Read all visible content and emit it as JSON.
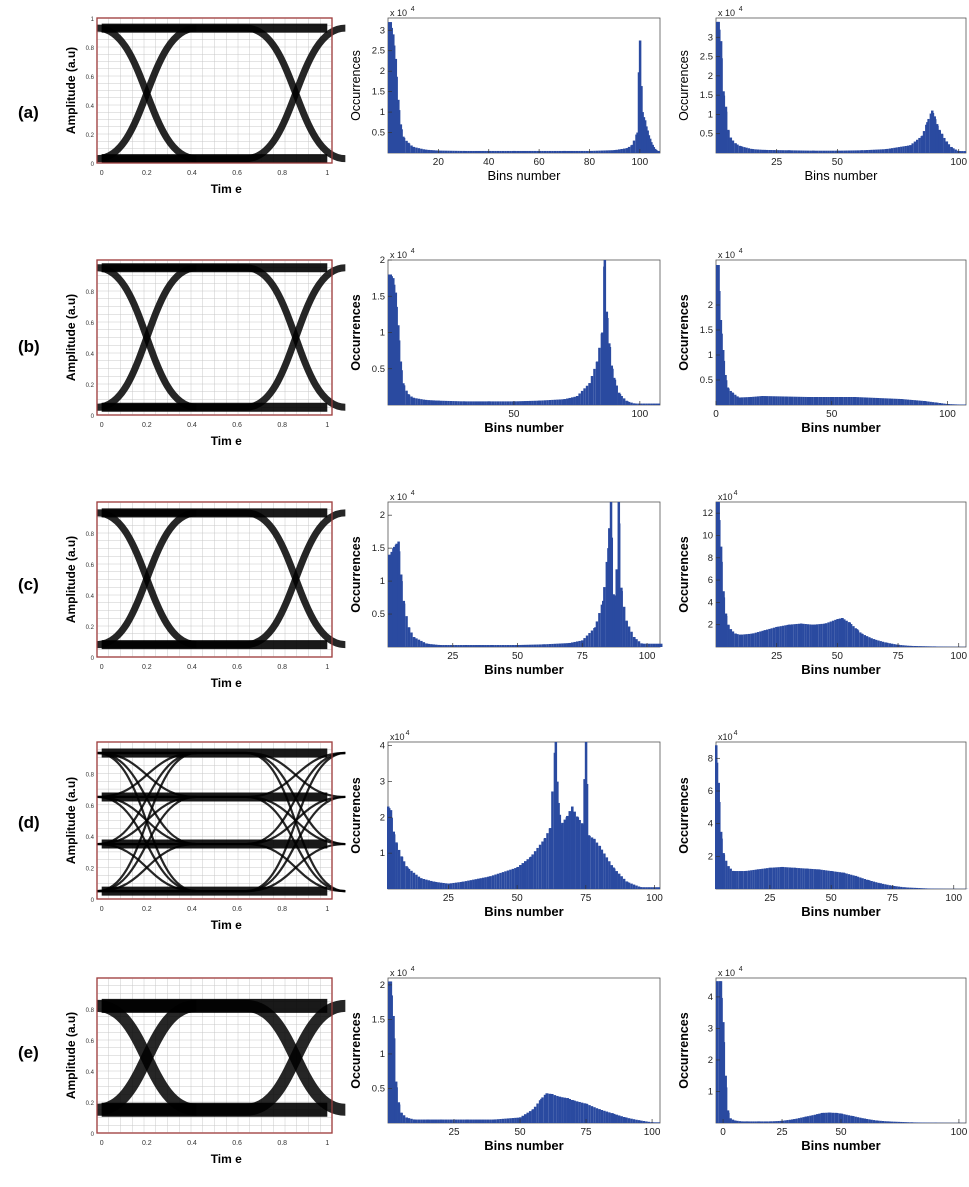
{
  "figure": {
    "rows": [
      {
        "label": "(a)",
        "eye": {
          "ylabel": "Amplitude (a.u)",
          "xlabel": "Tim e",
          "levels": [
            0.03,
            0.93
          ],
          "xticks": [
            "0",
            "0.2",
            "0.4",
            "0.6",
            "0.8",
            "1"
          ],
          "yticks": [
            "0",
            "0.2",
            "0.4",
            "0.6",
            "0.8",
            "1"
          ]
        },
        "hist1": {
          "ylabel": "Occurrences",
          "xlabel": "Bins number",
          "multiplier": "x 10",
          "multiplier_exp": "4",
          "yticks": [
            "0.5",
            "1",
            "1.5",
            "2",
            "2.5",
            "3"
          ],
          "xticks": [
            "20",
            "40",
            "60",
            "80",
            "100"
          ]
        },
        "hist2": {
          "ylabel": "Occurrences",
          "xlabel": "Bins number",
          "multiplier": "x 10",
          "multiplier_exp": "4",
          "yticks": [
            "0.5",
            "1",
            "1.5",
            "2",
            "2.5",
            "3"
          ],
          "xticks": [
            "25",
            "50",
            "100"
          ]
        }
      },
      {
        "label": "(b)",
        "eye": {
          "ylabel": "Amplitude (a.u)",
          "xlabel": "Tim e",
          "levels": [
            0.05,
            0.95
          ],
          "xticks": [
            "0",
            "0.2",
            "0.4",
            "0.6",
            "0.8",
            "1"
          ],
          "yticks": [
            "0",
            "0.2",
            "0.4",
            "0.6",
            "0.8"
          ]
        },
        "hist1": {
          "ylabel": "Occurrences",
          "xlabel": "Bins number",
          "multiplier": "x 10",
          "multiplier_exp": "4",
          "yticks": [
            "0.5",
            "1",
            "1.5",
            "2"
          ],
          "xticks": [
            "50",
            "100"
          ]
        },
        "hist2": {
          "ylabel": "Occurrences",
          "xlabel": "Bins number",
          "multiplier": "x 10",
          "multiplier_exp": "4",
          "yticks": [
            "0.5",
            "1",
            "1.5",
            "2"
          ],
          "xticks": [
            "0",
            "50",
            "100"
          ]
        }
      },
      {
        "label": "(c)",
        "eye": {
          "ylabel": "Amplitude (a.u)",
          "xlabel": "Tim e",
          "levels": [
            0.08,
            0.93
          ],
          "xticks": [
            "0",
            "0.2",
            "0.4",
            "0.6",
            "0.8",
            "1"
          ],
          "yticks": [
            "0",
            "0.2",
            "0.4",
            "0.6",
            "0.8"
          ]
        },
        "hist1": {
          "ylabel": "Occurrences",
          "xlabel": "Bins number",
          "multiplier": "x 10",
          "multiplier_exp": "4",
          "yticks": [
            "0.5",
            "1",
            "1.5",
            "2"
          ],
          "xticks": [
            "25",
            "50",
            "75",
            "100"
          ]
        },
        "hist2": {
          "ylabel": "Occurrences",
          "xlabel": "Bins number",
          "multiplier": "x10",
          "multiplier_exp": "4",
          "yticks": [
            "2",
            "4",
            "6",
            "8",
            "10",
            "12"
          ],
          "xticks": [
            "25",
            "50",
            "75",
            "100"
          ]
        }
      },
      {
        "label": "(d)",
        "eye": {
          "ylabel": "Amplitude (a.u)",
          "xlabel": "Tim e",
          "levels": [
            0.05,
            0.35,
            0.65,
            0.93
          ],
          "xticks": [
            "0",
            "0.2",
            "0.4",
            "0.6",
            "0.8",
            "1"
          ],
          "yticks": [
            "0",
            "0.2",
            "0.4",
            "0.6",
            "0.8"
          ]
        },
        "hist1": {
          "ylabel": "Occurrences",
          "xlabel": "Bins number",
          "multiplier": "x10",
          "multiplier_exp": "4",
          "yticks": [
            "1",
            "2",
            "3",
            "4"
          ],
          "xticks": [
            "25",
            "50",
            "75",
            "100"
          ]
        },
        "hist2": {
          "ylabel": "Occurrences",
          "xlabel": "Bins number",
          "multiplier": "x10",
          "multiplier_exp": "4",
          "yticks": [
            "2",
            "4",
            "6",
            "8"
          ],
          "xticks": [
            "25",
            "50",
            "75",
            "100"
          ]
        }
      },
      {
        "label": "(e)",
        "eye": {
          "ylabel": "Amplitude (a.u)",
          "xlabel": "Tim e",
          "levels": [
            0.15,
            0.82
          ],
          "xticks": [
            "0",
            "0.2",
            "0.4",
            "0.6",
            "0.8",
            "1"
          ],
          "yticks": [
            "0",
            "0.2",
            "0.4",
            "0.6",
            "0.8"
          ]
        },
        "hist1": {
          "ylabel": "Occurrences",
          "xlabel": "Bins number",
          "multiplier": "x 10",
          "multiplier_exp": "4",
          "yticks": [
            "0.5",
            "1",
            "1.5",
            "2"
          ],
          "xticks": [
            "25",
            "50",
            "75",
            "100"
          ]
        },
        "hist2": {
          "ylabel": "Occurrences",
          "xlabel": "Bins number",
          "multiplier": "x 10",
          "multiplier_exp": "4",
          "yticks": [
            "1",
            "2",
            "3",
            "4"
          ],
          "xticks": [
            "0",
            "25",
            "50",
            "100"
          ]
        }
      }
    ]
  },
  "chart_data": [
    {
      "type": "line",
      "panel": "(a) eye diagram",
      "xlabel": "Tim e",
      "ylabel": "Amplitude (a.u)",
      "xlim": [
        0,
        1
      ],
      "ylim": [
        0,
        1
      ],
      "levels": [
        0.03,
        0.93
      ]
    },
    {
      "type": "bar",
      "panel": "(a) histogram 1",
      "xlabel": "Bins number",
      "ylabel": "Occurrences",
      "ymultiplier": "x 10^4",
      "xlim": [
        0,
        108
      ],
      "ylim": [
        0,
        3.3
      ],
      "x": [
        1,
        2,
        3,
        4,
        5,
        6,
        8,
        10,
        15,
        20,
        30,
        40,
        50,
        60,
        70,
        80,
        90,
        95,
        97,
        99,
        100,
        101,
        102,
        103,
        104,
        105,
        106,
        107
      ],
      "values": [
        3.2,
        2.9,
        2.3,
        1.3,
        0.7,
        0.4,
        0.25,
        0.15,
        0.08,
        0.06,
        0.05,
        0.05,
        0.05,
        0.05,
        0.05,
        0.05,
        0.07,
        0.12,
        0.2,
        0.5,
        2.75,
        1.0,
        0.8,
        0.55,
        0.35,
        0.2,
        0.1,
        0.05
      ]
    },
    {
      "type": "bar",
      "panel": "(a) histogram 2",
      "xlabel": "Bins number",
      "ylabel": "Occurrences",
      "ymultiplier": "x 10^4",
      "xlim": [
        0,
        103
      ],
      "ylim": [
        0,
        3.5
      ],
      "x": [
        1,
        2,
        3,
        4,
        5,
        6,
        8,
        10,
        15,
        20,
        30,
        40,
        50,
        60,
        70,
        80,
        85,
        87,
        89,
        90,
        91,
        92,
        93,
        95,
        97,
        100
      ],
      "values": [
        3.4,
        2.9,
        1.6,
        1.2,
        0.6,
        0.4,
        0.25,
        0.18,
        0.1,
        0.08,
        0.07,
        0.06,
        0.06,
        0.07,
        0.1,
        0.2,
        0.45,
        0.8,
        1.1,
        0.95,
        0.75,
        0.6,
        0.5,
        0.3,
        0.15,
        0.05
      ]
    },
    {
      "type": "bar",
      "panel": "(b) histogram 1",
      "xlabel": "Bins number",
      "ylabel": "Occurrences",
      "ymultiplier": "x 10^4",
      "xlim": [
        0,
        108
      ],
      "ylim": [
        0,
        2
      ],
      "x": [
        1,
        2,
        3,
        4,
        5,
        6,
        8,
        10,
        15,
        20,
        30,
        40,
        50,
        60,
        70,
        75,
        80,
        83,
        85,
        86,
        87,
        88,
        89,
        90,
        92,
        95,
        98
      ],
      "values": [
        1.8,
        1.75,
        1.55,
        1.1,
        0.6,
        0.3,
        0.15,
        0.1,
        0.07,
        0.06,
        0.05,
        0.05,
        0.05,
        0.06,
        0.08,
        0.12,
        0.3,
        0.6,
        1.0,
        2.0,
        1.2,
        0.8,
        0.5,
        0.35,
        0.15,
        0.05,
        0.02
      ]
    },
    {
      "type": "bar",
      "panel": "(b) histogram 2",
      "xlabel": "Bins number",
      "ylabel": "Occurrences",
      "ymultiplier": "x 10^4",
      "xlim": [
        0,
        108
      ],
      "ylim": [
        0,
        2.9
      ],
      "x": [
        1,
        2,
        3,
        4,
        5,
        7,
        10,
        15,
        20,
        30,
        40,
        50,
        60,
        70,
        80,
        90,
        95,
        100,
        105
      ],
      "values": [
        2.8,
        1.7,
        1.1,
        0.6,
        0.35,
        0.25,
        0.15,
        0.16,
        0.18,
        0.17,
        0.16,
        0.16,
        0.16,
        0.14,
        0.12,
        0.08,
        0.05,
        0.02,
        0.01
      ]
    },
    {
      "type": "bar",
      "panel": "(c) histogram 1",
      "xlabel": "Bins number",
      "ylabel": "Occurrences",
      "ymultiplier": "x 10^4",
      "xlim": [
        0,
        105
      ],
      "ylim": [
        0,
        2.2
      ],
      "x": [
        1,
        2,
        3,
        4,
        5,
        6,
        8,
        10,
        15,
        20,
        30,
        40,
        50,
        60,
        70,
        75,
        80,
        83,
        85,
        86,
        87,
        88,
        89,
        90,
        92,
        95,
        98
      ],
      "values": [
        1.4,
        1.5,
        1.55,
        1.6,
        1.1,
        0.7,
        0.3,
        0.15,
        0.05,
        0.03,
        0.03,
        0.03,
        0.03,
        0.04,
        0.06,
        0.1,
        0.3,
        0.7,
        1.5,
        2.2,
        0.8,
        0.75,
        2.2,
        0.9,
        0.4,
        0.15,
        0.05
      ]
    },
    {
      "type": "bar",
      "panel": "(c) histogram 2",
      "xlabel": "Bins number",
      "ylabel": "Occurrences",
      "ymultiplier": "x10^4",
      "xlim": [
        0,
        103
      ],
      "ylim": [
        0,
        13
      ],
      "x": [
        1,
        2,
        3,
        4,
        5,
        6,
        8,
        10,
        15,
        20,
        25,
        30,
        35,
        40,
        45,
        50,
        52,
        55,
        58,
        60,
        65,
        70,
        75,
        80,
        90,
        100
      ],
      "values": [
        13,
        9,
        5,
        3,
        2,
        1.6,
        1.2,
        1.1,
        1.2,
        1.5,
        1.8,
        2.0,
        2.1,
        2.0,
        2.1,
        2.5,
        2.6,
        2.2,
        1.6,
        1.2,
        0.7,
        0.4,
        0.2,
        0.1,
        0.05,
        0.02
      ]
    },
    {
      "type": "line",
      "panel": "(d) eye diagram",
      "xlabel": "Tim e",
      "ylabel": "Amplitude (a.u)",
      "xlim": [
        0,
        1
      ],
      "ylim": [
        0,
        1
      ],
      "levels": [
        0.05,
        0.35,
        0.65,
        0.93
      ]
    },
    {
      "type": "bar",
      "panel": "(d) histogram 1",
      "xlabel": "Bins number",
      "ylabel": "Occurrences",
      "ymultiplier": "x10^4",
      "xlim": [
        3,
        102
      ],
      "ylim": [
        0,
        4.1
      ],
      "x": [
        3,
        4,
        5,
        6,
        8,
        10,
        15,
        20,
        25,
        30,
        40,
        50,
        55,
        60,
        62,
        64,
        65,
        66,
        68,
        70,
        72,
        74,
        75,
        76,
        78,
        80,
        85,
        90,
        95
      ],
      "values": [
        2.3,
        2.2,
        1.6,
        1.3,
        0.9,
        0.6,
        0.3,
        0.2,
        0.15,
        0.2,
        0.35,
        0.6,
        0.9,
        1.4,
        1.7,
        4.1,
        2.4,
        1.8,
        2.0,
        2.3,
        2.0,
        1.8,
        4.1,
        1.5,
        1.4,
        1.2,
        0.6,
        0.2,
        0.05
      ]
    },
    {
      "type": "bar",
      "panel": "(d) histogram 2",
      "xlabel": "Bins number",
      "ylabel": "Occurrences",
      "ymultiplier": "x10^4",
      "xlim": [
        3,
        105
      ],
      "ylim": [
        0,
        9
      ],
      "x": [
        3,
        4,
        5,
        6,
        8,
        10,
        15,
        20,
        25,
        30,
        35,
        40,
        45,
        50,
        55,
        60,
        65,
        70,
        75,
        80,
        90,
        100
      ],
      "values": [
        8.8,
        6.5,
        3.5,
        2.2,
        1.4,
        1.1,
        1.1,
        1.2,
        1.3,
        1.35,
        1.3,
        1.25,
        1.2,
        1.1,
        1.0,
        0.8,
        0.55,
        0.35,
        0.2,
        0.1,
        0.03,
        0.01
      ]
    },
    {
      "type": "line",
      "panel": "(e) eye diagram",
      "xlabel": "Tim e",
      "ylabel": "Amplitude (a.u)",
      "xlim": [
        0,
        1
      ],
      "ylim": [
        0,
        1
      ],
      "levels": [
        0.15,
        0.82
      ]
    },
    {
      "type": "bar",
      "panel": "(e) histogram 1",
      "xlabel": "Bins number",
      "ylabel": "Occurrences",
      "ymultiplier": "x 10^4",
      "xlim": [
        0,
        103
      ],
      "ylim": [
        0,
        2.1
      ],
      "x": [
        1,
        2,
        3,
        4,
        5,
        7,
        10,
        15,
        20,
        30,
        40,
        50,
        55,
        58,
        60,
        62,
        65,
        68,
        70,
        75,
        80,
        85,
        90,
        95,
        100
      ],
      "values": [
        2.05,
        1.55,
        0.6,
        0.3,
        0.15,
        0.08,
        0.05,
        0.05,
        0.05,
        0.05,
        0.05,
        0.08,
        0.2,
        0.35,
        0.43,
        0.42,
        0.38,
        0.36,
        0.33,
        0.28,
        0.2,
        0.14,
        0.08,
        0.04,
        0.01
      ]
    },
    {
      "type": "bar",
      "panel": "(e) histogram 2",
      "xlabel": "Bins number",
      "ylabel": "Occurrences",
      "ymultiplier": "x 10^4",
      "xlim": [
        -3,
        103
      ],
      "ylim": [
        0,
        4.6
      ],
      "x": [
        -1,
        0,
        1,
        2,
        3,
        5,
        8,
        10,
        15,
        20,
        25,
        30,
        35,
        40,
        42,
        45,
        48,
        50,
        55,
        60,
        65,
        70,
        80,
        90,
        100
      ],
      "values": [
        4.5,
        3.2,
        1.5,
        0.4,
        0.15,
        0.08,
        0.05,
        0.05,
        0.05,
        0.05,
        0.07,
        0.12,
        0.2,
        0.28,
        0.32,
        0.33,
        0.32,
        0.3,
        0.22,
        0.14,
        0.08,
        0.05,
        0.02,
        0.01,
        0.005
      ]
    }
  ],
  "style": {
    "bar_color": "#2a4aa0",
    "eye_color": "#000000",
    "grid_color": "#c8c8c8",
    "frame_color": "#a04040"
  }
}
